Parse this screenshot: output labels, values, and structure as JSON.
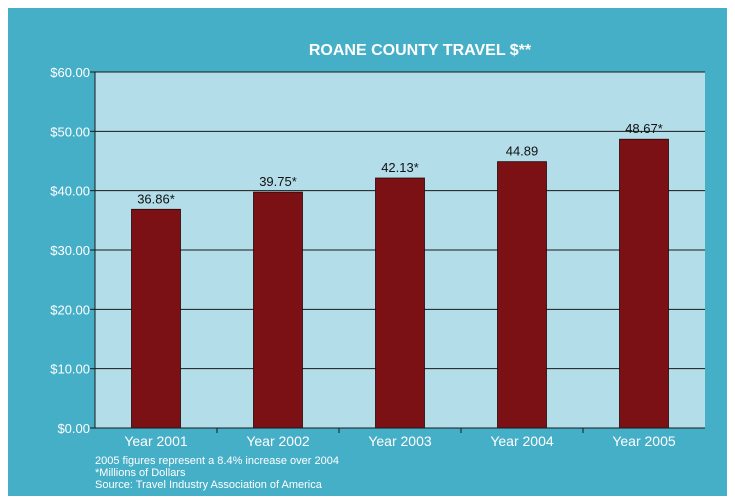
{
  "chart_data": {
    "type": "bar",
    "title": "ROANE COUNTY TRAVEL $**",
    "categories": [
      "Year 2001",
      "Year 2002",
      "Year 2003",
      "Year 2004",
      "Year 2005"
    ],
    "values": [
      36.86,
      39.75,
      42.13,
      44.89,
      48.67
    ],
    "data_labels": [
      "36.86*",
      "39.75*",
      "42.13*",
      "44.89",
      "48.67*"
    ],
    "ylim": [
      0,
      60
    ],
    "yticks": [
      0,
      10,
      20,
      30,
      40,
      50,
      60
    ],
    "ytick_labels": [
      "$0.00",
      "$10.00",
      "$20.00",
      "$30.00",
      "$40.00",
      "$50.00",
      "$60.00"
    ],
    "xlabel": "",
    "ylabel": "",
    "grid": true,
    "colors": {
      "background": "#46afc8",
      "plot_area": "#b3dde9",
      "bar": "#7b1115",
      "text": "#ffffff",
      "label": "#111111"
    }
  },
  "notes": [
    "2005 figures represent a 8.4% increase over 2004",
    "*Millions of Dollars",
    "Source: Travel Industry Association of America"
  ]
}
